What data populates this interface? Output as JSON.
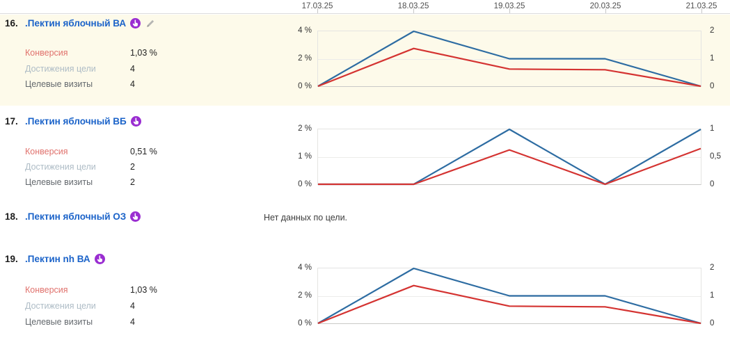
{
  "colors": {
    "link_blue": "#1b63c9",
    "line_blue": "#2d6ca2",
    "line_red": "#d43331",
    "row_highlight": "#fdfaea",
    "icon_purple": "#9a2ed1"
  },
  "axis": {
    "dates": [
      "17.03.25",
      "18.03.25",
      "19.03.25",
      "20.03.25",
      "21.03.25"
    ]
  },
  "rows": [
    {
      "num": "16.",
      "title": ".Пектин яблочный ВА",
      "has_edit": true,
      "metrics": {
        "conversion_label": "Конверсия",
        "conversion_value": "1,03 %",
        "goals_label": "Достижения цели",
        "goals_value": "4",
        "visits_label": "Целевые визиты",
        "visits_value": "4"
      }
    },
    {
      "num": "17.",
      "title": ".Пектин яблочный ВБ",
      "has_edit": false,
      "metrics": {
        "conversion_label": "Конверсия",
        "conversion_value": "0,51 %",
        "goals_label": "Достижения цели",
        "goals_value": "2",
        "visits_label": "Целевые визиты",
        "visits_value": "2"
      }
    },
    {
      "num": "18.",
      "title": ".Пектин яблочный ОЗ",
      "has_edit": false,
      "no_data": "Нет данных по цели."
    },
    {
      "num": "19.",
      "title": ".Пектин nh ВА",
      "has_edit": false,
      "metrics": {
        "conversion_label": "Конверсия",
        "conversion_value": "1,03 %",
        "goals_label": "Достижения цели",
        "goals_value": "4",
        "visits_label": "Целевые визиты",
        "visits_value": "4"
      }
    }
  ],
  "chart_data": [
    {
      "row": "16",
      "type": "line",
      "x": [
        "17.03.25",
        "18.03.25",
        "19.03.25",
        "20.03.25",
        "21.03.25"
      ],
      "left_axis": {
        "ticks": [
          "4 %",
          "2 %",
          "0 %"
        ],
        "max": 4,
        "unit": "%"
      },
      "right_axis": {
        "ticks": [
          "2",
          "1",
          "0"
        ],
        "max": 2
      },
      "grid": "horizontal",
      "series": [
        {
          "name": "Достижения цели",
          "axis": "right",
          "color": "#2d6ca2",
          "values": [
            0,
            2,
            1,
            1,
            0
          ]
        },
        {
          "name": "Конверсия",
          "axis": "left",
          "color": "#d43331",
          "values": [
            0,
            2.75,
            1.25,
            1.2,
            0
          ]
        }
      ]
    },
    {
      "row": "17",
      "type": "line",
      "x": [
        "17.03.25",
        "18.03.25",
        "19.03.25",
        "20.03.25",
        "21.03.25"
      ],
      "left_axis": {
        "ticks": [
          "2 %",
          "1 %",
          "0 %"
        ],
        "max": 2,
        "unit": "%"
      },
      "right_axis": {
        "ticks": [
          "1",
          "0,5",
          "0"
        ],
        "max": 1
      },
      "grid": "horizontal",
      "series": [
        {
          "name": "Достижения цели",
          "axis": "right",
          "color": "#2d6ca2",
          "values": [
            0,
            0,
            1,
            0,
            1
          ]
        },
        {
          "name": "Конверсия",
          "axis": "left",
          "color": "#d43331",
          "values": [
            0,
            0,
            1.25,
            0,
            1.3
          ]
        }
      ]
    },
    {
      "row": "19",
      "type": "line",
      "x": [
        "17.03.25",
        "18.03.25",
        "19.03.25",
        "20.03.25",
        "21.03.25"
      ],
      "left_axis": {
        "ticks": [
          "4 %",
          "2 %",
          "0 %"
        ],
        "max": 4,
        "unit": "%"
      },
      "right_axis": {
        "ticks": [
          "2",
          "1",
          "0"
        ],
        "max": 2
      },
      "grid": "horizontal",
      "series": [
        {
          "name": "Достижения цели",
          "axis": "right",
          "color": "#2d6ca2",
          "values": [
            0,
            2,
            1,
            1,
            0
          ]
        },
        {
          "name": "Конверсия",
          "axis": "left",
          "color": "#d43331",
          "values": [
            0,
            2.75,
            1.25,
            1.2,
            0
          ]
        }
      ]
    }
  ]
}
